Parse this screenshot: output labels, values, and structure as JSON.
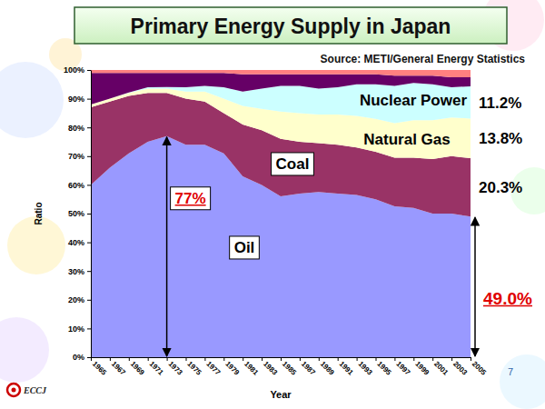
{
  "chart_data": {
    "type": "area",
    "title": "Primary Energy Supply in Japan",
    "source": "Source: METI/General Energy Statistics",
    "x_label": "Year",
    "y_label": "Ratio",
    "stacked": true,
    "grid": false,
    "data_labels": true,
    "x": [
      1965,
      1967,
      1969,
      1971,
      1973,
      1975,
      1977,
      1979,
      1981,
      1983,
      1985,
      1987,
      1989,
      1991,
      1993,
      1995,
      1997,
      1999,
      2001,
      2003,
      2005
    ],
    "xlim": [
      1965,
      2005
    ],
    "xticks": [
      1965,
      1967,
      1969,
      1971,
      1973,
      1975,
      1977,
      1979,
      1981,
      1983,
      1985,
      1987,
      1989,
      1991,
      1993,
      1995,
      1997,
      1999,
      2001,
      2003,
      2005
    ],
    "ylim": [
      0,
      100
    ],
    "yticks": [
      {
        "value": 0,
        "label": "0%"
      },
      {
        "value": 10,
        "label": "10%"
      },
      {
        "value": 20,
        "label": "20%"
      },
      {
        "value": 30,
        "label": "30%"
      },
      {
        "value": 40,
        "label": "40%"
      },
      {
        "value": 50,
        "label": "50%"
      },
      {
        "value": 60,
        "label": "60%"
      },
      {
        "value": 70,
        "label": "70%"
      },
      {
        "value": 80,
        "label": "80%"
      },
      {
        "value": 90,
        "label": "90%"
      },
      {
        "value": 100,
        "label": "100%"
      }
    ],
    "series": [
      {
        "name": "Oil",
        "color": "#9999ff",
        "values": [
          60,
          66,
          71,
          75,
          77,
          74,
          74,
          71,
          63,
          60,
          56,
          57,
          57.5,
          57,
          56.5,
          55,
          52.5,
          52,
          50,
          50,
          49.0
        ],
        "value_labels": [
          null,
          null,
          null,
          null,
          "77%",
          null,
          null,
          null,
          null,
          null,
          null,
          null,
          null,
          null,
          null,
          null,
          null,
          null,
          null,
          null,
          "49.0%"
        ]
      },
      {
        "name": "Coal",
        "color": "#993366",
        "values": [
          27,
          23,
          20,
          17,
          15,
          16,
          15,
          14,
          18,
          19,
          20,
          18,
          17,
          17,
          16.5,
          16.5,
          17,
          17.5,
          19,
          20,
          20.3
        ],
        "value_labels": [
          null,
          null,
          null,
          null,
          null,
          null,
          null,
          null,
          null,
          null,
          null,
          null,
          null,
          null,
          null,
          null,
          null,
          null,
          null,
          null,
          "20.3%"
        ]
      },
      {
        "name": "Natural Gas",
        "color": "#ffffcc",
        "values": [
          1,
          1,
          1,
          1.5,
          1.5,
          2.5,
          3.5,
          5,
          6.5,
          7.5,
          9.5,
          10,
          10,
          10.5,
          11,
          11.5,
          12,
          13,
          13.5,
          13.5,
          13.8
        ],
        "value_labels": [
          null,
          null,
          null,
          null,
          null,
          null,
          null,
          null,
          null,
          null,
          null,
          null,
          null,
          null,
          null,
          null,
          null,
          null,
          null,
          null,
          "13.8%"
        ]
      },
      {
        "name": "Nuclear Power",
        "color": "#ccffff",
        "values": [
          0,
          0,
          0.2,
          0.5,
          0.6,
          1.5,
          2,
          4,
          5,
          7,
          9,
          9.5,
          9,
          9.5,
          11,
          12,
          13,
          13,
          12.5,
          10.5,
          11.2
        ],
        "value_labels": [
          null,
          null,
          null,
          null,
          null,
          null,
          null,
          null,
          null,
          null,
          null,
          null,
          null,
          null,
          null,
          null,
          null,
          null,
          null,
          null,
          "11.2%"
        ]
      },
      {
        "color": "#660066",
        "values": [
          11,
          9,
          6.8,
          5,
          4.9,
          5,
          4.5,
          5,
          6,
          5,
          4,
          4,
          5,
          4.5,
          3.5,
          3.5,
          3.5,
          2.5,
          3,
          3.5,
          3.2
        ]
      },
      {
        "color": "#ff8080",
        "values": [
          1,
          1,
          1,
          1,
          1,
          1,
          1,
          1,
          1.5,
          1.5,
          1.5,
          1.5,
          1.5,
          1.5,
          1.5,
          1.5,
          2,
          2,
          2,
          2.5,
          2.5
        ]
      }
    ],
    "logo": "ECCJ",
    "page": 7
  }
}
